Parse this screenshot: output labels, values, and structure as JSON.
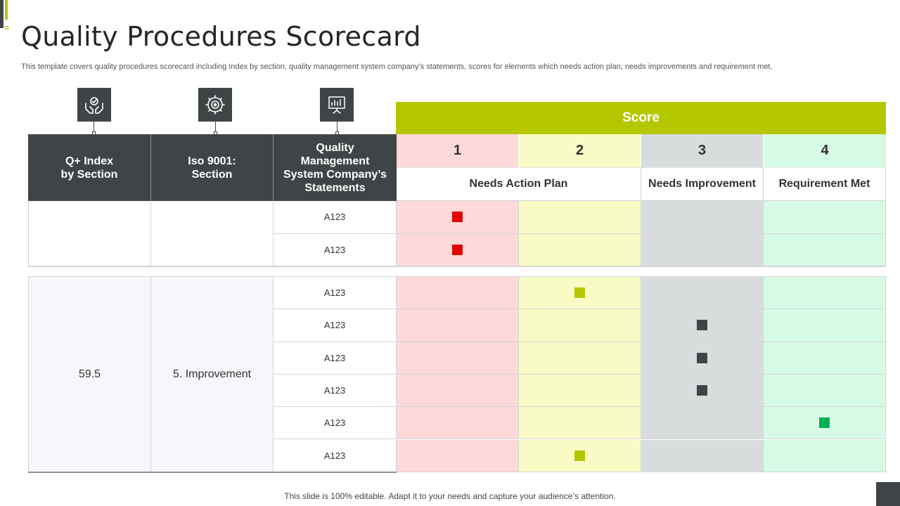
{
  "title": "Quality Procedures Scorecard",
  "subtitle": "This template covers quality procedures scorecard including Index by section, quality management system company’s statements, scores for elements which needs action plan, needs improvements and requirement met.",
  "icons": [
    "hands-check-icon",
    "gear-target-icon",
    "presentation-board-icon"
  ],
  "headers": {
    "col1": "Q+ Index\nby Section",
    "col2": "Iso 9001:\nSection",
    "col3": "Quality\nManagement\nSystem Company’s\nStatements"
  },
  "score": {
    "title": "Score",
    "numbers": [
      "1",
      "2",
      "3",
      "4"
    ],
    "labels": {
      "needs_action_plan": "Needs Action Plan",
      "needs_improvement": "Needs Improvement",
      "requirement_met": "Requirement Met"
    }
  },
  "colors": {
    "dark": "#3f4547",
    "accent": "#b5c700",
    "score1_bg": "#fdd9da",
    "score2_bg": "#f8fbc4",
    "score3_bg": "#d9dcdd",
    "score4_bg": "#d7fae6",
    "marker_red": "#e00000",
    "marker_lime": "#b5c700",
    "marker_dark": "#3f4547",
    "marker_green": "#00b050"
  },
  "group1": {
    "rows": [
      {
        "statement": "A123",
        "score": 1
      },
      {
        "statement": "A123",
        "score": 1
      }
    ]
  },
  "group2": {
    "index": "59.5",
    "section": "5. Improvement",
    "rows": [
      {
        "statement": "A123",
        "score": 2
      },
      {
        "statement": "A123",
        "score": 3
      },
      {
        "statement": "A123",
        "score": 3
      },
      {
        "statement": "A123",
        "score": 3
      },
      {
        "statement": "A123",
        "score": 4
      },
      {
        "statement": "A123",
        "score": 2
      }
    ]
  },
  "footer": "This slide is 100% editable. Adapt it to your needs and capture your audience’s attention."
}
